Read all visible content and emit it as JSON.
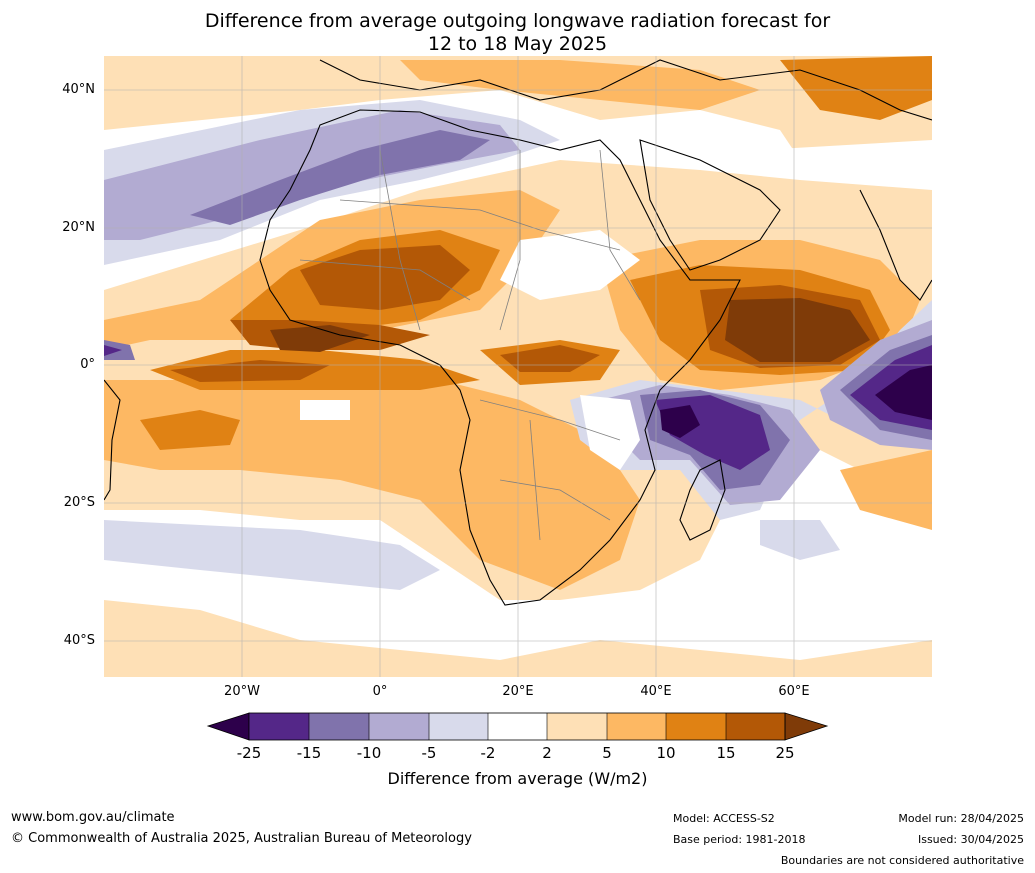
{
  "title": {
    "line1": "Difference from average outgoing longwave radiation forecast for",
    "line2": "12 to 18 May 2025"
  },
  "map": {
    "lat_labels": [
      "40°N",
      "20°N",
      "0°",
      "20°S",
      "40°S"
    ],
    "lon_labels": [
      "20°W",
      "0°",
      "20°E",
      "40°E",
      "60°E"
    ],
    "region": "Africa",
    "colors": {
      "lt_neg25": "#2d004b",
      "neg25_neg15": "#542788",
      "neg15_neg10": "#8073ac",
      "neg10_neg5": "#b2abd2",
      "neg5_neg2": "#d8daeb",
      "neg2_2": "#ffffff",
      "p2_5": "#fee0b6",
      "p5_10": "#fdb863",
      "p10_15": "#e08214",
      "p15_25": "#b35806",
      "gt_25": "#7f3b08"
    }
  },
  "colorbar": {
    "ticks": [
      "-25",
      "-15",
      "-10",
      "-5",
      "-2",
      "2",
      "5",
      "10",
      "15",
      "25"
    ],
    "label": "Difference from average (W/m2)"
  },
  "footer": {
    "website": "www.bom.gov.au/climate",
    "copyright": "© Commonwealth of Australia 2025, Australian Bureau of Meteorology",
    "model": "Model: ACCESS-S2",
    "base_period": "Base period: 1981-2018",
    "model_run": "Model run: 28/04/2025",
    "issued": "Issued: 30/04/2025",
    "disclaimer": "Boundaries are not considered authoritative"
  }
}
